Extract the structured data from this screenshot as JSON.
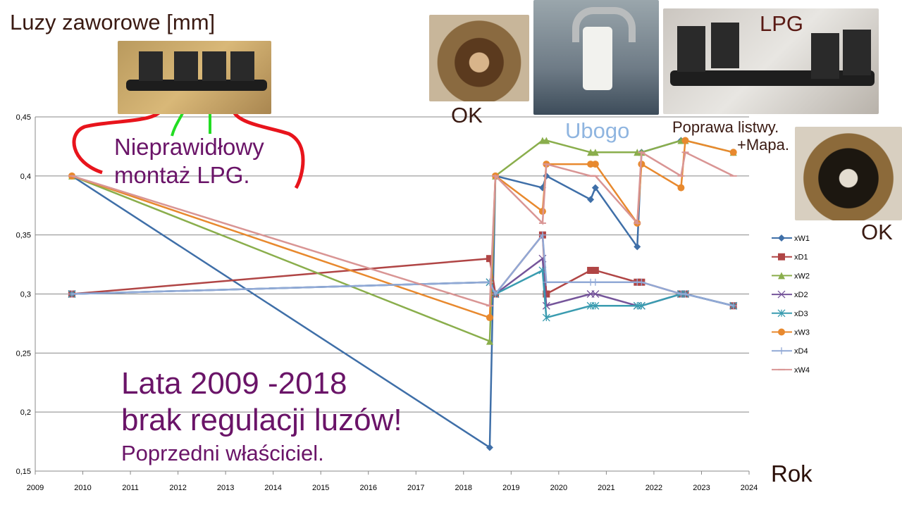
{
  "title": "Luzy zaworowe [mm]",
  "annotations": {
    "ok1": "OK",
    "ok2": "OK",
    "lpg": "LPG",
    "ubogo": "Ubogo",
    "poprawa1": "Poprawa listwy.",
    "poprawa2": "+Mapa.",
    "niepr1": "Nieprawidłowy",
    "niepr2": "montaż LPG.",
    "lata1": "Lata 2009 -2018",
    "lata2": "brak regulacji luzów!",
    "poprzedni": "Poprzedni właściciel.",
    "rok": "Rok"
  },
  "photos": [
    "lpg-rail-photo",
    "spark-plug-ok-photo",
    "spark-plug-lean-photo",
    "lpg-injectors-photo",
    "spark-plug-ok-photo-2"
  ],
  "chart_data": {
    "type": "line",
    "title": "Luzy zaworowe [mm]",
    "xlabel": "Rok",
    "ylabel": "",
    "xlim": [
      2009,
      2024
    ],
    "ylim": [
      0.15,
      0.45
    ],
    "xticks": [
      "2009",
      "2010",
      "2011",
      "2012",
      "2013",
      "2014",
      "2015",
      "2016",
      "2017",
      "2018",
      "2019",
      "2020",
      "2021",
      "2022",
      "2023",
      "2024"
    ],
    "yticks": [
      "0,15",
      "0,2",
      "0,25",
      "0,3",
      "0,35",
      "0,4",
      "0,45"
    ],
    "ytick_values": [
      0.15,
      0.2,
      0.25,
      0.3,
      0.35,
      0.4,
      0.45
    ],
    "grid": true,
    "legend": "right",
    "x": [
      2009.77,
      2018.55,
      2018.67,
      2019.66,
      2019.74,
      2020.67,
      2020.77,
      2021.65,
      2021.74,
      2022.57,
      2022.66,
      2023.67
    ],
    "series": [
      {
        "name": "xW1",
        "color": "#3f6fa8",
        "marker": "diamond",
        "values": [
          0.4,
          0.17,
          0.4,
          0.39,
          0.4,
          0.38,
          0.39,
          0.34,
          0.42,
          0.43,
          null,
          null
        ]
      },
      {
        "name": "xD1",
        "color": "#b04545",
        "marker": "square",
        "values": [
          0.3,
          0.33,
          0.3,
          0.35,
          0.3,
          0.32,
          0.32,
          0.31,
          0.31,
          0.3,
          0.3,
          0.29
        ]
      },
      {
        "name": "xW2",
        "color": "#8aae4c",
        "marker": "triangle",
        "values": [
          0.4,
          0.26,
          0.4,
          0.43,
          0.43,
          0.42,
          0.42,
          0.42,
          0.42,
          0.43,
          0.43,
          0.42
        ]
      },
      {
        "name": "xD2",
        "color": "#75559a",
        "marker": "x",
        "values": [
          0.3,
          0.31,
          0.3,
          0.33,
          0.29,
          0.3,
          0.3,
          0.29,
          0.29,
          0.3,
          0.3,
          0.29
        ]
      },
      {
        "name": "xD3",
        "color": "#3a9cb0",
        "marker": "star",
        "values": [
          0.3,
          0.31,
          0.3,
          0.32,
          0.28,
          0.29,
          0.29,
          0.29,
          0.29,
          0.3,
          0.3,
          0.29
        ]
      },
      {
        "name": "xW3",
        "color": "#e8892e",
        "marker": "circle",
        "values": [
          0.4,
          0.28,
          0.4,
          0.37,
          0.41,
          0.41,
          0.41,
          0.36,
          0.41,
          0.39,
          0.43,
          0.42
        ]
      },
      {
        "name": "xD4",
        "color": "#91a9d6",
        "marker": "plus",
        "values": [
          0.3,
          0.31,
          0.3,
          0.35,
          0.31,
          0.31,
          0.31,
          0.31,
          0.31,
          0.3,
          0.3,
          0.29
        ]
      },
      {
        "name": "xW4",
        "color": "#d99594",
        "marker": "dash",
        "values": [
          0.4,
          0.29,
          0.4,
          0.36,
          0.41,
          0.4,
          0.4,
          0.36,
          0.42,
          0.4,
          0.42,
          0.4
        ]
      }
    ]
  }
}
